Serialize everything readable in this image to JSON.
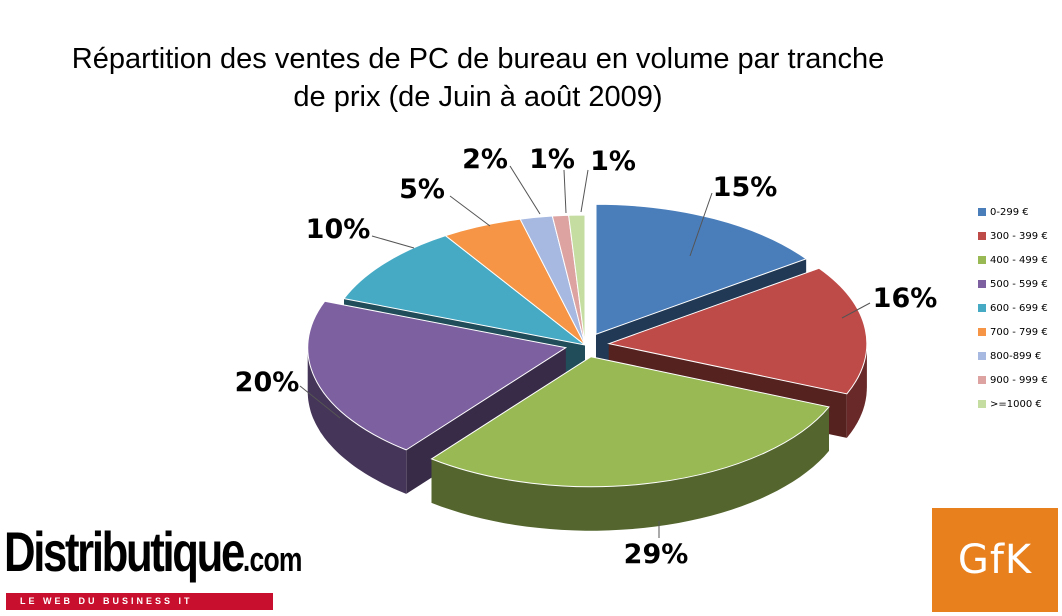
{
  "chart_data": {
    "type": "pie",
    "title_line1": "Répartition des ventes de PC de bureau en volume par tranche",
    "title_line2": "de prix (de Juin à août 2009)",
    "legend_position": "right",
    "slices": [
      {
        "label": "0-299 €",
        "value": 15,
        "display": "15%",
        "color": "#4a7ebb"
      },
      {
        "label": "300 - 399 €",
        "value": 16,
        "display": "16%",
        "color": "#be4b48"
      },
      {
        "label": "400 - 499 €",
        "value": 29,
        "display": "29%",
        "color": "#98b954"
      },
      {
        "label": "500 - 599 €",
        "value": 20,
        "display": "20%",
        "color": "#7d60a0"
      },
      {
        "label": "600 - 699 €",
        "value": 10,
        "display": "10%",
        "color": "#46aac5"
      },
      {
        "label": "700 - 799 €",
        "value": 5,
        "display": "5%",
        "color": "#f69545"
      },
      {
        "label": "800-899 €",
        "value": 2,
        "display": "2%",
        "color": "#a7b9e1"
      },
      {
        "label": "900 - 999 €",
        "value": 1,
        "display": "1%",
        "color": "#dca3a1"
      },
      {
        "label": ">=1000 €",
        "value": 1,
        "display": "1%",
        "color": "#c5dda0"
      }
    ]
  },
  "logos": {
    "left_main": "Distributique",
    "left_domain": ".com",
    "left_tagline": "LE WEB DU BUSINESS IT",
    "right": "GfK"
  }
}
